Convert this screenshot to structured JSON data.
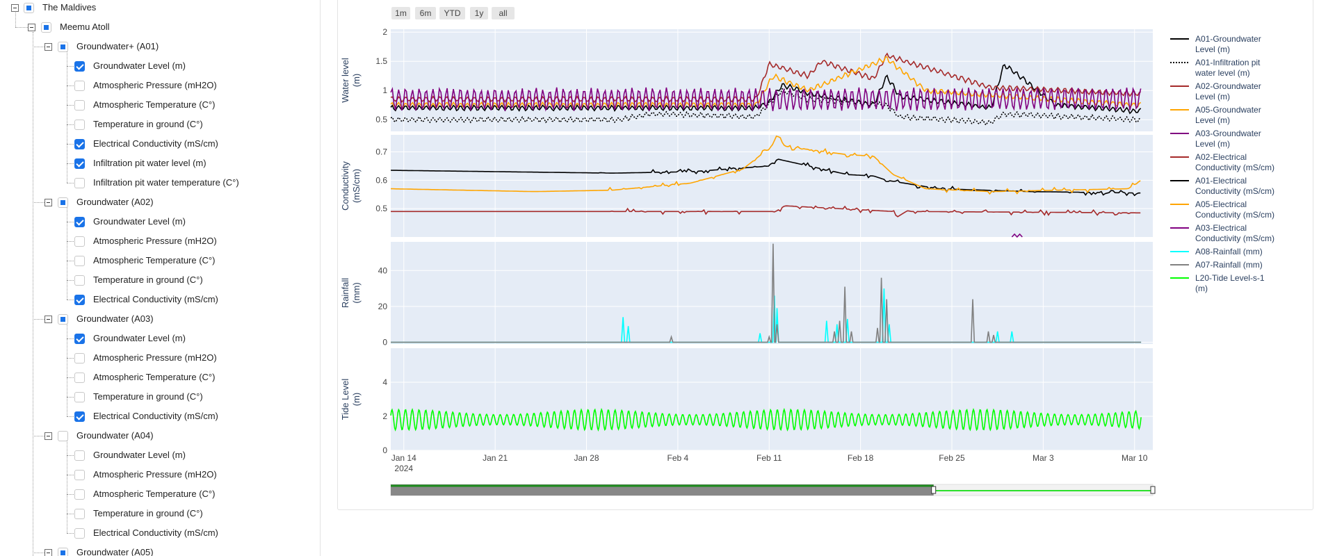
{
  "tree": {
    "root": {
      "label": "The Maldives",
      "state": "partial"
    },
    "region": {
      "label": "Meemu Atoll",
      "state": "partial"
    },
    "groups": [
      {
        "label": "Groundwater+ (A01)",
        "state": "partial",
        "items": [
          {
            "label": "Groundwater Level (m)",
            "checked": true
          },
          {
            "label": "Atmospheric Pressure (mH2O)",
            "checked": false
          },
          {
            "label": "Atmospheric Temperature (C°)",
            "checked": false
          },
          {
            "label": "Temperature in ground (C°)",
            "checked": false
          },
          {
            "label": "Electrical Conductivity (mS/cm)",
            "checked": true
          },
          {
            "label": "Infiltration pit water level (m)",
            "checked": true
          },
          {
            "label": "Infiltration pit water temperature (C°)",
            "checked": false
          }
        ]
      },
      {
        "label": "Groundwater (A02)",
        "state": "partial",
        "items": [
          {
            "label": "Groundwater Level (m)",
            "checked": true
          },
          {
            "label": "Atmospheric Pressure (mH2O)",
            "checked": false
          },
          {
            "label": "Atmospheric Temperature (C°)",
            "checked": false
          },
          {
            "label": "Temperature in ground (C°)",
            "checked": false
          },
          {
            "label": "Electrical Conductivity (mS/cm)",
            "checked": true
          }
        ]
      },
      {
        "label": "Groundwater (A03)",
        "state": "partial",
        "items": [
          {
            "label": "Groundwater Level (m)",
            "checked": true
          },
          {
            "label": "Atmospheric Pressure (mH2O)",
            "checked": false
          },
          {
            "label": "Atmospheric Temperature (C°)",
            "checked": false
          },
          {
            "label": "Temperature in ground (C°)",
            "checked": false
          },
          {
            "label": "Electrical Conductivity (mS/cm)",
            "checked": true
          }
        ]
      },
      {
        "label": "Groundwater (A04)",
        "state": "unchecked",
        "items": [
          {
            "label": "Groundwater Level (m)",
            "checked": false
          },
          {
            "label": "Atmospheric Pressure (mH2O)",
            "checked": false
          },
          {
            "label": "Atmospheric Temperature (C°)",
            "checked": false
          },
          {
            "label": "Temperature in ground (C°)",
            "checked": false
          },
          {
            "label": "Electrical Conductivity (mS/cm)",
            "checked": false
          }
        ]
      },
      {
        "label": "Groundwater (A05)",
        "state": "partial",
        "items": []
      }
    ]
  },
  "rangeselector": [
    "1m",
    "6m",
    "YTD",
    "1y",
    "all"
  ],
  "chart_data": {
    "type": "line",
    "x_axis": {
      "ticks": [
        "Jan 14",
        "Jan 21",
        "Jan 28",
        "Feb 4",
        "Feb 11",
        "Feb 18",
        "Feb 25",
        "Mar 3",
        "Mar 10"
      ],
      "sublabel": "2024",
      "range_days": [
        -1,
        57.4
      ]
    },
    "panels": [
      {
        "ylabel": "Water level (m)",
        "ylim": [
          0.3,
          2.05
        ],
        "yticks": [
          0.5,
          1,
          1.5,
          2
        ],
        "series": [
          "A01-Groundwater Level (m)",
          "A01-Infiltration pit water level (m)",
          "A02-Groundwater Level (m)",
          "A05-Groundwater Level (m)",
          "A03-Groundwater Level (m)"
        ]
      },
      {
        "ylabel": "Conductivity (mS/cm)",
        "ylim": [
          0.4,
          0.76
        ],
        "yticks": [
          0.5,
          0.6,
          0.7
        ],
        "series": [
          "A02-Electrical Conductivity (mS/cm)",
          "A01-Electrical Conductivity (mS/cm)",
          "A05-Electrical Conductivity (mS/cm)",
          "A03-Electrical Conductivity (mS/cm)"
        ]
      },
      {
        "ylabel": "Rainfall (mm)",
        "ylim": [
          -1,
          56
        ],
        "yticks": [
          0,
          20,
          40
        ],
        "series": [
          "A08-Rainfall (mm)",
          "A07-Rainfall (mm)"
        ]
      },
      {
        "ylabel": "Tide Level (m)",
        "ylim": [
          0,
          6
        ],
        "yticks": [
          0,
          2,
          4
        ],
        "series": [
          "L20-Tide Level-s-1 (m)"
        ]
      }
    ],
    "legend": [
      {
        "name": "A01-Groundwater Level (m)",
        "color": "#000000",
        "dash": "solid"
      },
      {
        "name": "A01-Infiltration pit water level (m)",
        "color": "#000000",
        "dash": "dot"
      },
      {
        "name": "A02-Groundwater Level (m)",
        "color": "#a52a2a",
        "dash": "solid"
      },
      {
        "name": "A05-Groundwater Level (m)",
        "color": "#ffa500",
        "dash": "solid"
      },
      {
        "name": "A03-Groundwater Level (m)",
        "color": "#800080",
        "dash": "solid"
      },
      {
        "name": "A02-Electrical Conductivity (mS/cm)",
        "color": "#a52a2a",
        "dash": "solid"
      },
      {
        "name": "A01-Electrical Conductivity (mS/cm)",
        "color": "#000000",
        "dash": "solid"
      },
      {
        "name": "A05-Electrical Conductivity (mS/cm)",
        "color": "#ffa500",
        "dash": "solid"
      },
      {
        "name": "A03-Electrical Conductivity (mS/cm)",
        "color": "#800080",
        "dash": "solid"
      },
      {
        "name": "A08-Rainfall (mm)",
        "color": "#00ffff",
        "dash": "solid"
      },
      {
        "name": "A07-Rainfall (mm)",
        "color": "#808080",
        "dash": "solid"
      },
      {
        "name": "L20-Tide Level-s-1 (m)",
        "color": "#00ff00",
        "dash": "solid"
      }
    ],
    "key_points": {
      "water_level": {
        "A01-Groundwater Level (m)": [
          [
            -1,
            0.7
          ],
          [
            27,
            0.7
          ],
          [
            28,
            0.8
          ],
          [
            29,
            1.1
          ],
          [
            31,
            0.95
          ],
          [
            36,
            0.75
          ],
          [
            37,
            1.25
          ],
          [
            38,
            0.9
          ],
          [
            45,
            0.7
          ],
          [
            46,
            1.45
          ],
          [
            50,
            0.75
          ],
          [
            56,
            0.65
          ]
        ],
        "A01-Infiltration pit water level (m)": [
          [
            -1,
            0.5
          ],
          [
            16.5,
            0.5
          ],
          [
            19,
            0.6
          ],
          [
            27,
            0.55
          ],
          [
            29,
            1.0
          ],
          [
            31,
            0.85
          ],
          [
            37,
            0.75
          ],
          [
            38,
            0.55
          ],
          [
            45,
            0.45
          ],
          [
            46,
            0.6
          ],
          [
            56,
            0.5
          ]
        ],
        "A02-Groundwater Level (m)": [
          [
            -1,
            0.85
          ],
          [
            27,
            0.85
          ],
          [
            28,
            1.45
          ],
          [
            31,
            1.25
          ],
          [
            32,
            1.5
          ],
          [
            36,
            1.2
          ],
          [
            37,
            1.6
          ],
          [
            45,
            1.05
          ],
          [
            56,
            0.95
          ]
        ],
        "A05-Groundwater Level (m)": [
          [
            -1,
            0.75
          ],
          [
            27,
            0.75
          ],
          [
            28.3,
            1.25
          ],
          [
            31,
            1.0
          ],
          [
            37,
            1.55
          ],
          [
            40,
            1.0
          ],
          [
            56,
            0.75
          ]
        ],
        "A03-Groundwater Level (m)": [
          [
            -1,
            0.85
          ],
          [
            56,
            0.85
          ]
        ]
      },
      "conductivity": {
        "A02-Electrical Conductivity (mS/cm)": [
          [
            -1,
            0.49
          ],
          [
            28.5,
            0.49
          ],
          [
            29.2,
            0.51
          ],
          [
            37.5,
            0.49
          ],
          [
            37.8,
            0.47
          ],
          [
            38.5,
            0.49
          ],
          [
            56.5,
            0.485
          ]
        ],
        "A01-Electrical Conductivity (mS/cm)": [
          [
            -1,
            0.635
          ],
          [
            16,
            0.625
          ],
          [
            22,
            0.63
          ],
          [
            28,
            0.65
          ],
          [
            28.6,
            0.675
          ],
          [
            34,
            0.62
          ],
          [
            36,
            0.615
          ],
          [
            37,
            0.6
          ],
          [
            41,
            0.57
          ],
          [
            48,
            0.56
          ],
          [
            56.5,
            0.555
          ]
        ],
        "A05-Electrical Conductivity (mS/cm)": [
          [
            -1,
            0.57
          ],
          [
            10,
            0.56
          ],
          [
            16,
            0.565
          ],
          [
            22,
            0.59
          ],
          [
            26,
            0.64
          ],
          [
            28.2,
            0.72
          ],
          [
            28.6,
            0.76
          ],
          [
            29.2,
            0.72
          ],
          [
            34,
            0.69
          ],
          [
            36,
            0.685
          ],
          [
            37.5,
            0.62
          ],
          [
            40,
            0.57
          ],
          [
            45,
            0.56
          ],
          [
            55.5,
            0.57
          ],
          [
            56.5,
            0.6
          ]
        ],
        "A03-Electrical Conductivity (mS/cm)": [
          [
            46.6,
            0.4
          ],
          [
            46.8,
            0.41
          ],
          [
            47.0,
            0.4
          ],
          [
            47.2,
            0.41
          ],
          [
            47.4,
            0.4
          ]
        ]
      },
      "rainfall": {
        "A08-Rainfall (mm)": [
          [
            16.8,
            14
          ],
          [
            17.2,
            9
          ],
          [
            27.3,
            5
          ],
          [
            28.4,
            26
          ],
          [
            28.6,
            19
          ],
          [
            32.4,
            12
          ],
          [
            33.2,
            10
          ],
          [
            34.0,
            13
          ],
          [
            36.8,
            30
          ],
          [
            37.2,
            10
          ],
          [
            45.5,
            6
          ],
          [
            46.6,
            6
          ]
        ],
        "A07-Rainfall (mm)": [
          [
            20.5,
            3
          ],
          [
            28.0,
            3
          ],
          [
            28.3,
            55
          ],
          [
            28.6,
            10
          ],
          [
            33.0,
            6
          ],
          [
            33.4,
            12
          ],
          [
            33.8,
            31
          ],
          [
            34.3,
            6
          ],
          [
            36.3,
            8
          ],
          [
            36.6,
            36
          ],
          [
            37.0,
            24
          ],
          [
            43.6,
            24
          ],
          [
            44.8,
            6
          ],
          [
            45.2,
            4
          ]
        ]
      },
      "tide": {
        "L20-Tide Level-s-1 (m)": {
          "mean": 1.8,
          "amplitude_min": 0.3,
          "amplitude_max": 0.6,
          "cycles_per_day": 1.93
        }
      }
    }
  }
}
